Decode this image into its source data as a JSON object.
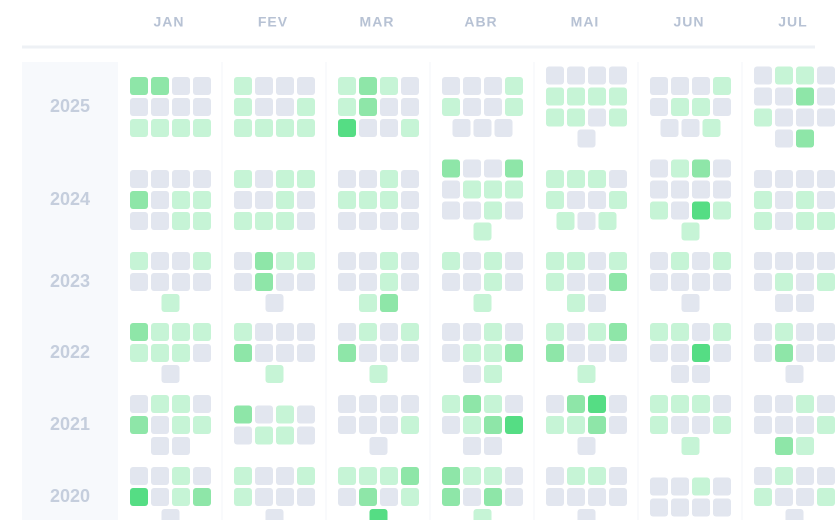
{
  "chart_data": {
    "type": "calendar-heatmap",
    "months": [
      "JAN",
      "FEV",
      "MAR",
      "ABR",
      "MAI",
      "JUN",
      "JUL"
    ],
    "years": [
      "2025",
      "2024",
      "2023",
      "2022",
      "2021",
      "2020"
    ],
    "level_colors": [
      "#e2e6ef",
      "#c6f4d6",
      "#8ee6a8",
      "#55dd84"
    ],
    "cells": [
      [
        [
          2,
          2,
          0,
          0,
          0,
          0,
          0,
          0,
          1,
          1,
          1,
          1
        ],
        [
          1,
          0,
          0,
          0,
          1,
          0,
          0,
          1,
          1,
          1,
          1,
          1
        ],
        [
          1,
          2,
          1,
          0,
          1,
          2,
          0,
          0,
          3,
          0,
          0,
          1
        ],
        [
          0,
          0,
          0,
          1,
          1,
          0,
          0,
          1,
          0,
          0,
          0
        ],
        [
          0,
          0,
          0,
          0,
          1,
          1,
          1,
          1,
          1,
          1,
          0,
          1,
          0
        ],
        [
          0,
          0,
          0,
          1,
          0,
          1,
          1,
          0,
          0,
          0,
          1
        ],
        [
          0,
          1,
          1,
          0,
          0,
          0,
          2,
          0,
          1,
          0,
          0,
          0,
          0,
          2
        ]
      ],
      [
        [
          0,
          0,
          0,
          0,
          2,
          0,
          1,
          1,
          0,
          0,
          1,
          1
        ],
        [
          1,
          0,
          1,
          1,
          0,
          0,
          1,
          0,
          1,
          1,
          1,
          0
        ],
        [
          0,
          0,
          1,
          0,
          1,
          1,
          1,
          0,
          0,
          0,
          0,
          0
        ],
        [
          2,
          0,
          0,
          2,
          0,
          1,
          1,
          1,
          0,
          0,
          1,
          0,
          1
        ],
        [
          1,
          1,
          1,
          0,
          1,
          0,
          0,
          1,
          1,
          0,
          1
        ],
        [
          0,
          1,
          2,
          0,
          0,
          0,
          0,
          0,
          1,
          0,
          3,
          1,
          1
        ],
        [
          0,
          0,
          0,
          0,
          1,
          0,
          1,
          0,
          1,
          0,
          1,
          1
        ]
      ],
      [
        [
          1,
          0,
          0,
          1,
          0,
          0,
          0,
          0,
          1
        ],
        [
          0,
          2,
          1,
          1,
          0,
          2,
          0,
          0,
          0
        ],
        [
          0,
          0,
          1,
          0,
          0,
          0,
          1,
          0,
          1,
          2
        ],
        [
          1,
          0,
          1,
          0,
          0,
          0,
          1,
          0,
          1
        ],
        [
          1,
          1,
          0,
          1,
          1,
          0,
          0,
          2,
          1,
          0
        ],
        [
          0,
          1,
          0,
          1,
          0,
          0,
          0,
          0,
          0
        ],
        [
          0,
          0,
          0,
          0,
          0,
          1,
          0,
          1,
          0,
          0
        ]
      ],
      [
        [
          2,
          1,
          1,
          1,
          1,
          1,
          1,
          0,
          0
        ],
        [
          1,
          0,
          0,
          0,
          2,
          0,
          0,
          0,
          1
        ],
        [
          0,
          1,
          0,
          1,
          2,
          0,
          0,
          0,
          1
        ],
        [
          0,
          0,
          1,
          0,
          0,
          1,
          1,
          2,
          0,
          1
        ],
        [
          1,
          0,
          1,
          2,
          2,
          0,
          0,
          0,
          1
        ],
        [
          1,
          1,
          0,
          1,
          0,
          0,
          3,
          0,
          0,
          0
        ],
        [
          0,
          1,
          0,
          0,
          0,
          2,
          0,
          0,
          0
        ]
      ],
      [
        [
          0,
          1,
          1,
          0,
          2,
          0,
          1,
          1,
          0,
          0
        ],
        [
          2,
          0,
          1,
          0,
          0,
          1,
          1,
          0
        ],
        [
          0,
          0,
          0,
          0,
          0,
          0,
          0,
          1,
          0
        ],
        [
          1,
          2,
          1,
          0,
          0,
          1,
          2,
          3,
          0,
          0
        ],
        [
          0,
          2,
          3,
          0,
          1,
          1,
          2,
          0,
          0
        ],
        [
          1,
          1,
          1,
          0,
          1,
          0,
          0,
          1,
          1
        ],
        [
          0,
          0,
          1,
          0,
          0,
          0,
          0,
          1,
          2,
          1
        ]
      ],
      [
        [
          0,
          0,
          1,
          0,
          3,
          0,
          1,
          2,
          0
        ],
        [
          1,
          0,
          0,
          1,
          1,
          0,
          0,
          0,
          0
        ],
        [
          1,
          1,
          1,
          2,
          0,
          2,
          0,
          1,
          3
        ],
        [
          2,
          1,
          1,
          0,
          2,
          0,
          2,
          0,
          1
        ],
        [
          0,
          1,
          1,
          0,
          0,
          0,
          0,
          0,
          0
        ],
        [
          0,
          0,
          1,
          0,
          0,
          0,
          0,
          0
        ],
        [
          0,
          1,
          0,
          0,
          1,
          0,
          0,
          1,
          0
        ]
      ]
    ]
  }
}
